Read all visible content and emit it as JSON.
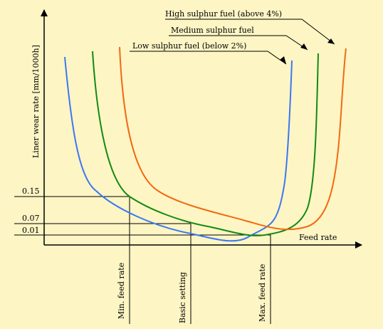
{
  "chart_data": {
    "type": "line",
    "title": "",
    "xlabel": "Feed rate",
    "ylabel": "Liner wear rate [mm/1000h]",
    "y_ticks": [
      "0.15",
      "0.07",
      "0.01"
    ],
    "x_markers": [
      "Min. feed rate",
      "Basic setting",
      "Max. feed rate"
    ],
    "grid": false,
    "series": [
      {
        "name": "Low sulphur fuel (below 2%)",
        "color": "#3a78f2"
      },
      {
        "name": "Medium sulphur fuel",
        "color": "#138a13"
      },
      {
        "name": "High sulphur fuel (above 4%)",
        "color": "#f26a12"
      }
    ]
  }
}
